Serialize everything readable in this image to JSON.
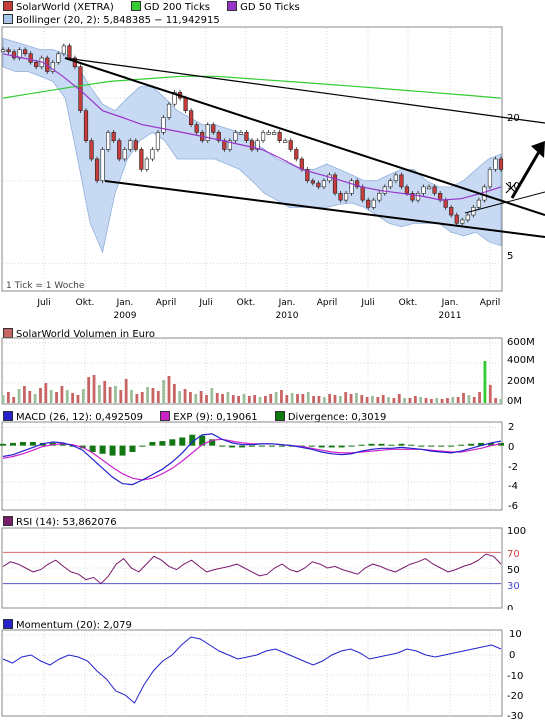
{
  "price_panel": {
    "legend": [
      {
        "label": "SolarWorld (XETRA)",
        "color": "#c83c3c"
      },
      {
        "label": "GD 200 Ticks",
        "color": "#33cc33"
      },
      {
        "label": "GD 50 Ticks",
        "color": "#9933cc"
      }
    ],
    "bollinger_label": "Bollinger (20, 2): 5,848385 − 11,942915",
    "bollinger_color": "#a9c4e8",
    "tick_note": "1 Tick = 1 Woche",
    "yticks": [
      "20",
      "10",
      "5"
    ],
    "xticks_top": [
      "Juli",
      "Okt.",
      "Jan.",
      "April",
      "Juli",
      "Okt.",
      "Jan.",
      "April",
      "Juli",
      "Okt.",
      "Jan.",
      "April"
    ],
    "xticks_years": [
      "2009",
      "2010",
      "2011"
    ]
  },
  "volume_panel": {
    "title": "SolarWorld Volumen in Euro",
    "color": "#c86464",
    "yticks": [
      "600M",
      "400M",
      "200M",
      "0M"
    ]
  },
  "macd_panel": {
    "legend": [
      {
        "label": "MACD (26, 12): 0,492509",
        "color": "#2222cc"
      },
      {
        "label": "EXP (9): 0,19061",
        "color": "#cc22cc"
      },
      {
        "label": "Divergence: 0,3019",
        "color": "#117711"
      }
    ],
    "yticks": [
      "2",
      "0",
      "-2",
      "-4",
      "-6"
    ]
  },
  "rsi_panel": {
    "title": "RSI (14): 53,862076",
    "color": "#7a1a6a",
    "yticks": [
      "100",
      "70",
      "50",
      "30",
      "0"
    ]
  },
  "momentum_panel": {
    "title": "Momentum (20): 2,079",
    "color": "#2222cc",
    "yticks": [
      "10",
      "0",
      "-10",
      "-20",
      "-30"
    ]
  },
  "chart_data": [
    {
      "type": "line",
      "name": "price",
      "series": [
        {
          "name": "SolarWorld (XETRA)",
          "values": [
            30,
            29.5,
            28,
            30,
            29,
            27,
            26,
            28,
            25,
            27,
            29,
            31,
            28,
            26,
            18,
            14,
            12,
            10,
            13,
            15,
            14,
            12,
            13,
            14,
            13,
            11,
            12,
            13,
            15,
            17,
            19,
            21,
            20,
            18,
            16,
            15,
            14,
            16,
            15,
            14,
            13,
            14,
            15,
            15,
            14,
            13,
            14,
            15,
            15,
            15,
            14,
            14,
            13,
            12,
            11,
            10,
            9.8,
            9.5,
            10,
            10.5,
            9,
            8.5,
            9,
            10,
            9.5,
            8.5,
            8,
            8.5,
            9,
            9.5,
            10,
            10.5,
            9.5,
            9,
            8.5,
            9,
            9.5,
            9.5,
            9,
            8.5,
            8,
            7.5,
            7,
            7.2,
            7.5,
            8,
            8.5,
            9.5,
            11,
            12,
            11
          ]
        },
        {
          "name": "GD 200 Ticks",
          "values": [
            20,
            21,
            22,
            23,
            23.5,
            24,
            24,
            23.5,
            23,
            22.5,
            22,
            21.5,
            21,
            20.5,
            20
          ]
        },
        {
          "name": "GD 50 Ticks",
          "values": [
            29,
            28,
            27,
            24,
            21,
            18,
            17,
            16,
            15.5,
            15,
            14.5,
            14,
            13.5,
            13,
            12,
            11,
            10.5,
            10,
            9.5,
            9.2,
            9,
            8.8,
            8.5,
            8.6,
            9,
            9.5
          ]
        }
      ],
      "bollinger_upper": [
        33,
        32,
        31,
        30,
        30,
        29,
        26,
        22,
        19,
        18,
        20,
        22,
        22,
        20,
        18,
        17,
        16,
        16,
        15.5,
        15,
        14,
        13,
        12,
        11.5,
        11,
        11,
        11.5,
        11,
        10.5,
        10,
        10,
        10.5,
        11,
        11,
        10,
        9.5,
        9.5,
        10,
        11,
        12,
        12.5
      ],
      "bollinger_lower": [
        26,
        25,
        25,
        24,
        23,
        20,
        12,
        7,
        5.5,
        9,
        12,
        14,
        15,
        14,
        12,
        12,
        12,
        12,
        11.5,
        11,
        10,
        9,
        8.5,
        8,
        8,
        8,
        8,
        8.2,
        8.3,
        8,
        7.5,
        7,
        6.8,
        7,
        7,
        7,
        6.5,
        6.3,
        6.5,
        6,
        5.8
      ],
      "y_scale": "log",
      "ylim": [
        4,
        36
      ],
      "x_labels": [
        "Juli",
        "Okt.",
        "Jan.",
        "April",
        "Juli",
        "Okt.",
        "Jan.",
        "April",
        "Juli",
        "Okt.",
        "Jan.",
        "April"
      ],
      "year_labels": [
        "2009",
        "2010",
        "2011"
      ]
    },
    {
      "type": "bar",
      "name": "volume",
      "values": [
        80,
        110,
        60,
        140,
        170,
        120,
        90,
        150,
        200,
        130,
        110,
        170,
        130,
        100,
        80,
        140,
        260,
        280,
        180,
        220,
        160,
        170,
        130,
        240,
        130,
        90,
        110,
        160,
        150,
        120,
        230,
        270,
        190,
        120,
        140,
        110,
        90,
        120,
        80,
        150,
        100,
        90,
        110,
        80,
        70,
        90,
        70,
        80,
        60,
        70,
        90,
        110,
        130,
        80,
        100,
        90,
        90,
        110,
        70,
        70,
        60,
        90,
        80,
        70,
        110,
        90,
        100,
        80,
        60,
        70,
        60,
        80,
        60,
        50,
        90,
        50,
        50,
        70,
        60,
        50,
        40,
        50,
        40,
        50,
        60,
        60,
        100,
        80,
        60,
        110,
        420,
        180,
        50,
        40
      ],
      "ylim": [
        0,
        640
      ],
      "unit": "M"
    },
    {
      "type": "line",
      "name": "macd",
      "macd": [
        -1.2,
        -1,
        -0.6,
        -0.2,
        0.2,
        0.4,
        0.3,
        0,
        -0.5,
        -1.5,
        -2.5,
        -3.5,
        -4.2,
        -4.3,
        -3.8,
        -3.2,
        -2.6,
        -1.8,
        -0.8,
        0.4,
        1.2,
        1.3,
        0.7,
        0.3,
        0.1,
        0.1,
        0.2,
        0.2,
        0.1,
        0,
        -0.2,
        -0.4,
        -0.7,
        -0.9,
        -1,
        -0.9,
        -0.6,
        -0.4,
        -0.3,
        -0.3,
        -0.2,
        -0.3,
        -0.4,
        -0.6,
        -0.7,
        -0.8,
        -0.6,
        -0.3,
        0,
        0.3,
        0.5
      ],
      "signal": [
        -1.4,
        -1.2,
        -0.9,
        -0.5,
        -0.1,
        0.1,
        0.2,
        0.1,
        -0.2,
        -0.8,
        -1.6,
        -2.4,
        -3.1,
        -3.6,
        -3.8,
        -3.6,
        -3.1,
        -2.5,
        -1.7,
        -0.8,
        0.1,
        0.6,
        0.7,
        0.5,
        0.3,
        0.2,
        0.2,
        0.2,
        0.1,
        0,
        -0.1,
        -0.3,
        -0.5,
        -0.7,
        -0.8,
        -0.8,
        -0.7,
        -0.6,
        -0.5,
        -0.4,
        -0.4,
        -0.4,
        -0.4,
        -0.5,
        -0.6,
        -0.7,
        -0.7,
        -0.5,
        -0.3,
        0,
        0.2
      ],
      "divergence": [
        0.2,
        0.3,
        0.4,
        0.4,
        0.3,
        0.3,
        0.2,
        -0.1,
        -0.3,
        -0.7,
        -0.9,
        -1.1,
        -1.1,
        -0.7,
        -0.1,
        0.4,
        0.5,
        0.7,
        0.9,
        1.2,
        1.1,
        0.7,
        0,
        -0.2,
        -0.2,
        -0.1,
        0,
        0,
        0,
        0,
        -0.1,
        -0.1,
        -0.2,
        -0.2,
        -0.2,
        -0.1,
        0.1,
        0.2,
        0.2,
        0.1,
        0.2,
        0.1,
        0,
        -0.1,
        -0.1,
        -0.1,
        0.1,
        0.2,
        0.3,
        0.3,
        0.3
      ],
      "ylim": [
        -7,
        2.5
      ]
    },
    {
      "type": "line",
      "name": "rsi",
      "values": [
        52,
        58,
        55,
        50,
        45,
        48,
        55,
        60,
        52,
        45,
        42,
        35,
        38,
        30,
        40,
        55,
        62,
        50,
        45,
        55,
        65,
        60,
        52,
        48,
        55,
        60,
        52,
        45,
        48,
        50,
        52,
        55,
        50,
        45,
        40,
        42,
        50,
        55,
        48,
        45,
        50,
        58,
        55,
        50,
        52,
        48,
        45,
        42,
        50,
        55,
        52,
        48,
        45,
        50,
        55,
        58,
        62,
        55,
        50,
        45,
        48,
        52,
        55,
        60,
        68,
        65,
        55
      ],
      "ylim": [
        0,
        100
      ],
      "reference_lines": [
        70,
        30
      ]
    },
    {
      "type": "line",
      "name": "momentum",
      "values": [
        -2,
        -4,
        -1,
        0,
        -3,
        -5,
        -2,
        0,
        -1,
        -3,
        -8,
        -12,
        -18,
        -20,
        -24,
        -15,
        -8,
        -3,
        0,
        5,
        9,
        8,
        5,
        2,
        0,
        -2,
        -1,
        0,
        2,
        3,
        1,
        -1,
        -3,
        -5,
        -3,
        0,
        2,
        3,
        1,
        -2,
        -1,
        0,
        1,
        3,
        2,
        0,
        -1,
        0,
        1,
        2,
        3,
        4,
        5,
        3
      ],
      "ylim": [
        -30,
        12
      ]
    }
  ]
}
